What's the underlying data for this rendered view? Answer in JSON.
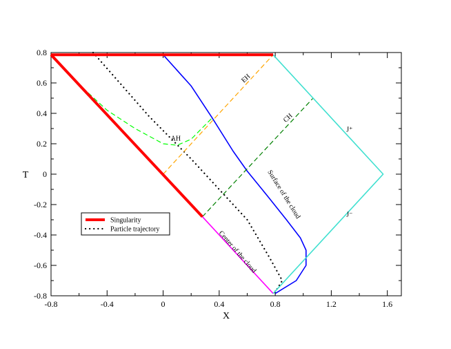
{
  "chart_data": {
    "type": "line",
    "xlabel": "X",
    "ylabel": "T",
    "xlim": [
      -0.8,
      1.7
    ],
    "ylim": [
      -0.8,
      0.8
    ],
    "x_ticks": [
      "-0.8",
      "-0.4",
      "0",
      "0.4",
      "0.8",
      "1.2",
      "1.6"
    ],
    "x_tick_values": [
      -0.8,
      -0.4,
      0,
      0.4,
      0.8,
      1.2,
      1.6
    ],
    "y_ticks": [
      "0.8",
      "0.6",
      "0.4",
      "0.2",
      "0",
      "-0.2",
      "-0.4",
      "-0.6",
      "-0.8"
    ],
    "y_tick_values": [
      0.8,
      0.6,
      0.4,
      0.2,
      0,
      -0.2,
      -0.4,
      -0.6,
      -0.8
    ],
    "grid": false,
    "legend_position": "lower-left",
    "series": [
      {
        "name": "Singularity",
        "color": "#ff0000",
        "style": "solid-thick",
        "legend": true,
        "segments": [
          [
            [
              -0.8,
              0.785
            ],
            [
              0.785,
              0.785
            ]
          ],
          [
            [
              -0.8,
              0.785
            ],
            [
              0.28,
              -0.28
            ]
          ]
        ]
      },
      {
        "name": "Particle trajectory",
        "color": "#000000",
        "style": "dotted",
        "legend": true,
        "points": [
          [
            -0.5,
            0.8
          ],
          [
            -0.1,
            0.38
          ],
          [
            0.2,
            0.1
          ],
          [
            0.4,
            -0.1
          ],
          [
            0.6,
            -0.3
          ],
          [
            0.76,
            -0.55
          ],
          [
            0.85,
            -0.7
          ],
          [
            0.79,
            -0.79
          ]
        ]
      },
      {
        "color": "#0000ff",
        "style": "solid",
        "points": [
          [
            0.0,
            0.785
          ],
          [
            0.2,
            0.58
          ],
          [
            0.35,
            0.37
          ],
          [
            0.5,
            0.15
          ],
          [
            0.6,
            0.02
          ],
          [
            0.75,
            -0.15
          ],
          [
            0.88,
            -0.3
          ],
          [
            0.98,
            -0.42
          ],
          [
            1.02,
            -0.5
          ],
          [
            1.02,
            -0.6
          ],
          [
            0.95,
            -0.7
          ],
          [
            0.8,
            -0.785
          ]
        ]
      },
      {
        "color": "#ffa500",
        "style": "dashed",
        "points": [
          [
            0.0,
            0.0
          ],
          [
            0.785,
            0.785
          ]
        ]
      },
      {
        "color": "#008000",
        "style": "dashed",
        "points": [
          [
            0.28,
            -0.28
          ],
          [
            1.07,
            0.5
          ]
        ]
      },
      {
        "color": "#00ff00",
        "style": "dashed",
        "points": [
          [
            -0.8,
            0.785
          ],
          [
            -0.6,
            0.59
          ],
          [
            -0.4,
            0.42
          ],
          [
            -0.2,
            0.3
          ],
          [
            0.0,
            0.2
          ],
          [
            0.1,
            0.19
          ],
          [
            0.2,
            0.23
          ],
          [
            0.35,
            0.37
          ]
        ]
      },
      {
        "color": "#ff00ff",
        "style": "solid",
        "points": [
          [
            0.28,
            -0.28
          ],
          [
            0.785,
            -0.785
          ]
        ]
      },
      {
        "color": "#40e0d0",
        "style": "solid",
        "points": [
          [
            0.785,
            0.785
          ],
          [
            1.57,
            0.0
          ],
          [
            0.785,
            -0.785
          ]
        ]
      }
    ],
    "annotations": [
      {
        "text": "EH",
        "x": 0.6,
        "y": 0.62,
        "rotate": -43
      },
      {
        "text": "CH",
        "x": 0.9,
        "y": 0.36,
        "rotate": -43
      },
      {
        "text": "AH",
        "x": 0.09,
        "y": 0.22,
        "rotate": 0
      },
      {
        "text": "J⁺",
        "x": 1.33,
        "y": 0.28,
        "rotate": 0
      },
      {
        "text": "J⁻",
        "x": 1.33,
        "y": -0.28,
        "rotate": 0
      },
      {
        "text": "Surface of the cloud",
        "x": 0.85,
        "y": -0.14,
        "rotate": 58
      },
      {
        "text": "Center of the cloud",
        "x": 0.52,
        "y": -0.52,
        "rotate": 49
      }
    ]
  }
}
